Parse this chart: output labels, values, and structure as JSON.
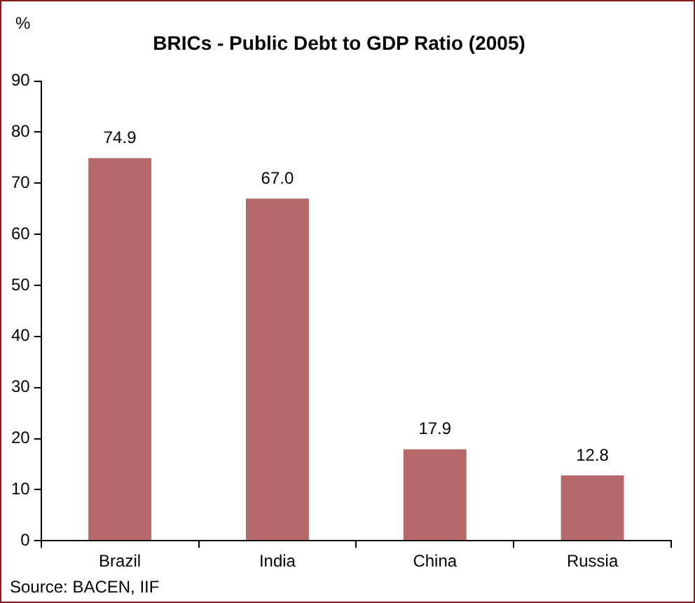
{
  "chart_data": {
    "type": "bar",
    "title": "BRICs - Public Debt to GDP Ratio (2005)",
    "ylabel": "%",
    "categories": [
      "Brazil",
      "India",
      "China",
      "Russia"
    ],
    "values": [
      74.9,
      67.0,
      17.9,
      12.8
    ],
    "color": "#b5696a",
    "ylim": [
      0,
      90
    ],
    "yticks": [
      0,
      10,
      20,
      30,
      40,
      50,
      60,
      70,
      80,
      90
    ],
    "grid": false,
    "legend": false,
    "value_labels": [
      "74.9",
      "67.0",
      "17.9",
      "12.8"
    ],
    "annotations": [
      "Source: BACEN, IIF"
    ]
  }
}
